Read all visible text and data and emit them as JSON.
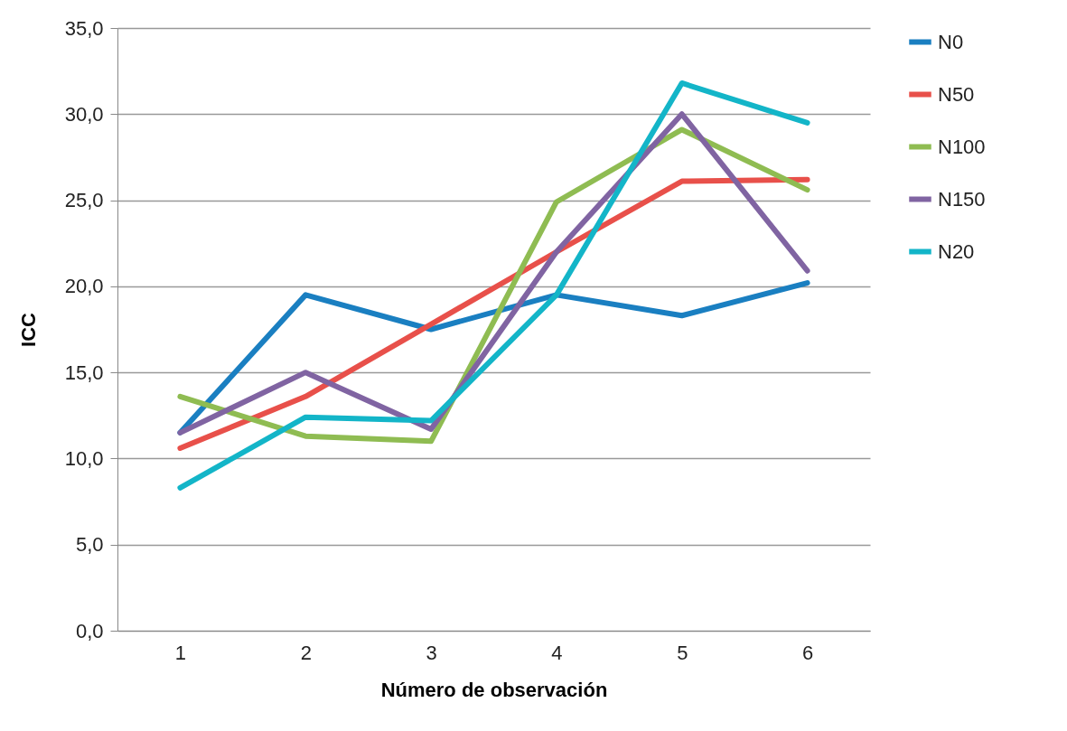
{
  "chart_data": {
    "type": "line",
    "xlabel": "Número de observación",
    "ylabel": "ICC",
    "categories": [
      "1",
      "2",
      "3",
      "4",
      "5",
      "6"
    ],
    "ylim": [
      0,
      35
    ],
    "yticks": [
      {
        "value": 0,
        "label": "0,0"
      },
      {
        "value": 5,
        "label": "5,0"
      },
      {
        "value": 10,
        "label": "10,0"
      },
      {
        "value": 15,
        "label": "15,0"
      },
      {
        "value": 20,
        "label": "20,0"
      },
      {
        "value": 25,
        "label": "25,0"
      },
      {
        "value": 30,
        "label": "30,0"
      },
      {
        "value": 35,
        "label": "35,0"
      }
    ],
    "grid": "y",
    "legend": "right",
    "marker": "none",
    "line_style": "solid",
    "series": [
      {
        "name": "N0",
        "color": "#1a7fc1",
        "values": [
          11.5,
          19.5,
          17.5,
          19.5,
          18.3,
          20.2
        ]
      },
      {
        "name": "N50",
        "color": "#e8504a",
        "values": [
          10.6,
          13.6,
          17.8,
          22.0,
          26.1,
          26.2
        ]
      },
      {
        "name": "N100",
        "color": "#8fbc52",
        "values": [
          13.6,
          11.3,
          11.0,
          24.9,
          29.1,
          25.6
        ]
      },
      {
        "name": "N150",
        "color": "#8064a2",
        "values": [
          11.5,
          15.0,
          11.7,
          22.0,
          30.0,
          20.9
        ]
      },
      {
        "name": "N20",
        "color": "#13b5c8",
        "values": [
          8.3,
          12.4,
          12.2,
          19.5,
          31.8,
          29.5
        ]
      }
    ]
  }
}
